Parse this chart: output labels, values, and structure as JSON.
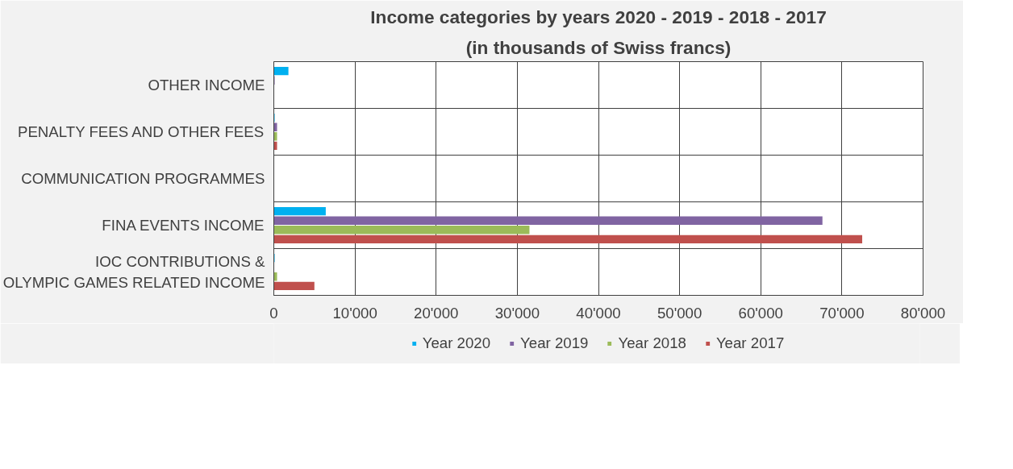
{
  "chart_data": {
    "type": "bar",
    "orientation": "horizontal",
    "title": "Income categories by years 2020 - 2019 - 2018 - 2017",
    "subtitle": "(in thousands of Swiss francs)",
    "categories": [
      "OTHER INCOME",
      "PENALTY FEES AND OTHER FEES",
      "COMMUNICATION PROGRAMMES",
      "FINA EVENTS INCOME",
      "IOC CONTRIBUTIONS &\nOLYMPIC GAMES RELATED INCOME"
    ],
    "series": [
      {
        "name": "Year 2020",
        "color": "#00b0f0",
        "values": [
          1800,
          100,
          0,
          6400,
          100
        ]
      },
      {
        "name": "Year 2019",
        "color": "#8064a2",
        "values": [
          100,
          400,
          0,
          67600,
          0
        ]
      },
      {
        "name": "Year 2018",
        "color": "#9bbb59",
        "values": [
          0,
          400,
          0,
          31500,
          400
        ]
      },
      {
        "name": "Year 2017",
        "color": "#c0504d",
        "values": [
          0,
          400,
          0,
          72500,
          5000
        ]
      }
    ],
    "xlim": [
      0,
      80000
    ],
    "xticks": [
      0,
      {
        "value": 10000,
        "label": "10'000"
      },
      {
        "value": 20000,
        "label": "20'000"
      },
      {
        "value": 30000,
        "label": "30'000"
      },
      {
        "value": 40000,
        "label": "40'000"
      },
      {
        "value": 50000,
        "label": "50'000"
      },
      {
        "value": 60000,
        "label": "60'000"
      },
      {
        "value": 70000,
        "label": "70'000"
      },
      {
        "value": 80000,
        "label": "80'000"
      }
    ],
    "grid": true,
    "legend": "bottom"
  }
}
